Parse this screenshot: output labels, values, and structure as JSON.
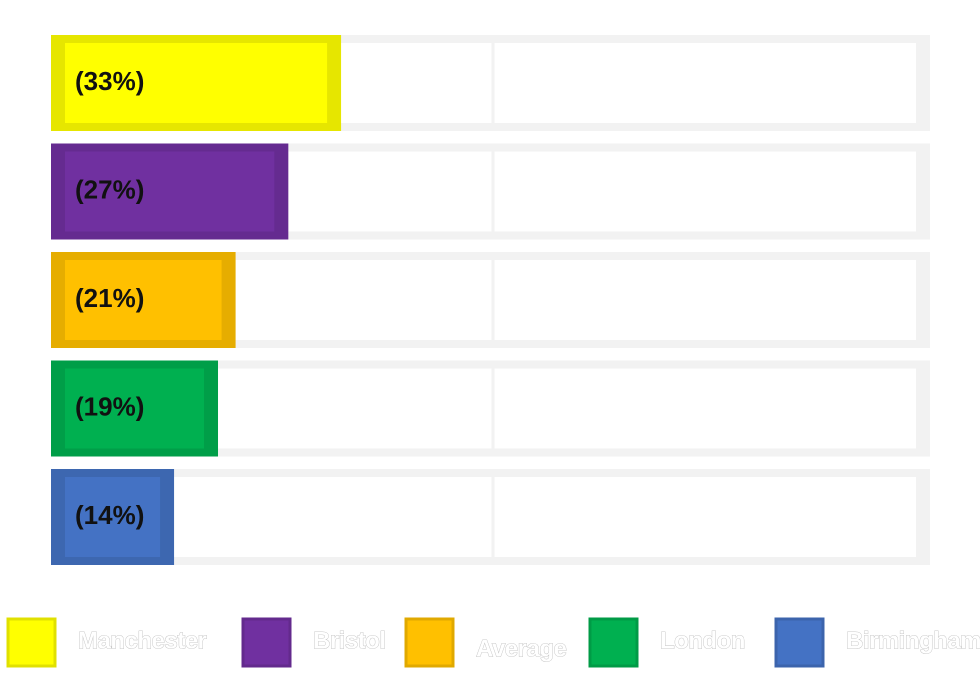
{
  "chart_data": {
    "type": "bar",
    "orientation": "horizontal",
    "xlim": [
      0,
      100
    ],
    "series": [
      {
        "name": "Manchester",
        "color": "#ffff00",
        "values": [
          33
        ],
        "value_labels": [
          "(33%)"
        ]
      },
      {
        "name": "Bristol",
        "color": "#7030a0",
        "values": [
          27
        ],
        "value_labels": [
          "(27%)"
        ]
      },
      {
        "name": "Average",
        "color": "#ffc000",
        "values": [
          21
        ],
        "value_labels": [
          "(21%)"
        ]
      },
      {
        "name": "London",
        "color": "#00b050",
        "values": [
          19
        ],
        "value_labels": [
          "(19%)"
        ]
      },
      {
        "name": "Birmingham",
        "color": "#4472c4",
        "values": [
          14
        ],
        "value_labels": [
          "(14%)"
        ]
      }
    ]
  }
}
